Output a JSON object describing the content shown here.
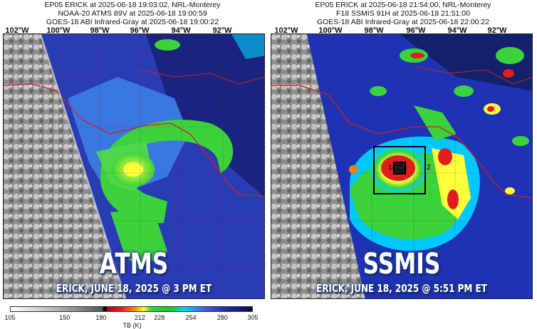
{
  "left_panel": {
    "header_lines": [
      "EP05 ERICK at 2025-06-18 19:03:02, NRL-Monterey",
      "NOAA-20 ATMS 89V at 2025-06-18 19:00:59",
      "GOES-18 ABI Infrared-Gray at 2025-06-18 19:00:22"
    ],
    "longitudes": [
      "102°W",
      "100°W",
      "98°W",
      "96°W",
      "94°W",
      "92°W"
    ],
    "sensor_label": "ATMS",
    "caption": "ERICK, JUNE 18, 2025 @ 3 PM ET"
  },
  "right_panel": {
    "header_lines": [
      "EP05 ERICK at 2025-06-18 21:54:00, NRL-Monterey",
      "F18 SSMIS 91H at 2025-06-18 21:51:00",
      "GOES-18 ABI Infrared-Gray at 2025-06-18 22:00:22"
    ],
    "longitudes": [
      "102°W",
      "100°W",
      "98°W",
      "96°W",
      "94°W",
      "92°W"
    ],
    "sensor_label": "SSMIS",
    "caption": "ERICK, JUNE 18, 2025 @ 5:51 PM ET",
    "box_labels": [
      "1",
      "2"
    ]
  },
  "colorbar": {
    "ticks": [
      "105",
      "150",
      "180",
      "212",
      "228",
      "254",
      "280",
      "305"
    ],
    "tick_values": [
      105,
      150,
      180,
      212,
      228,
      254,
      280,
      305
    ],
    "range": [
      105,
      305
    ],
    "title": "TB (K)"
  },
  "colors": {
    "ocean_dark": "#1e2a8c",
    "land_gray": "#8a8a8a",
    "green": "#3cd23c",
    "yellow": "#ffff3c",
    "red": "#e01e1e",
    "coast_red": "#d02020"
  }
}
